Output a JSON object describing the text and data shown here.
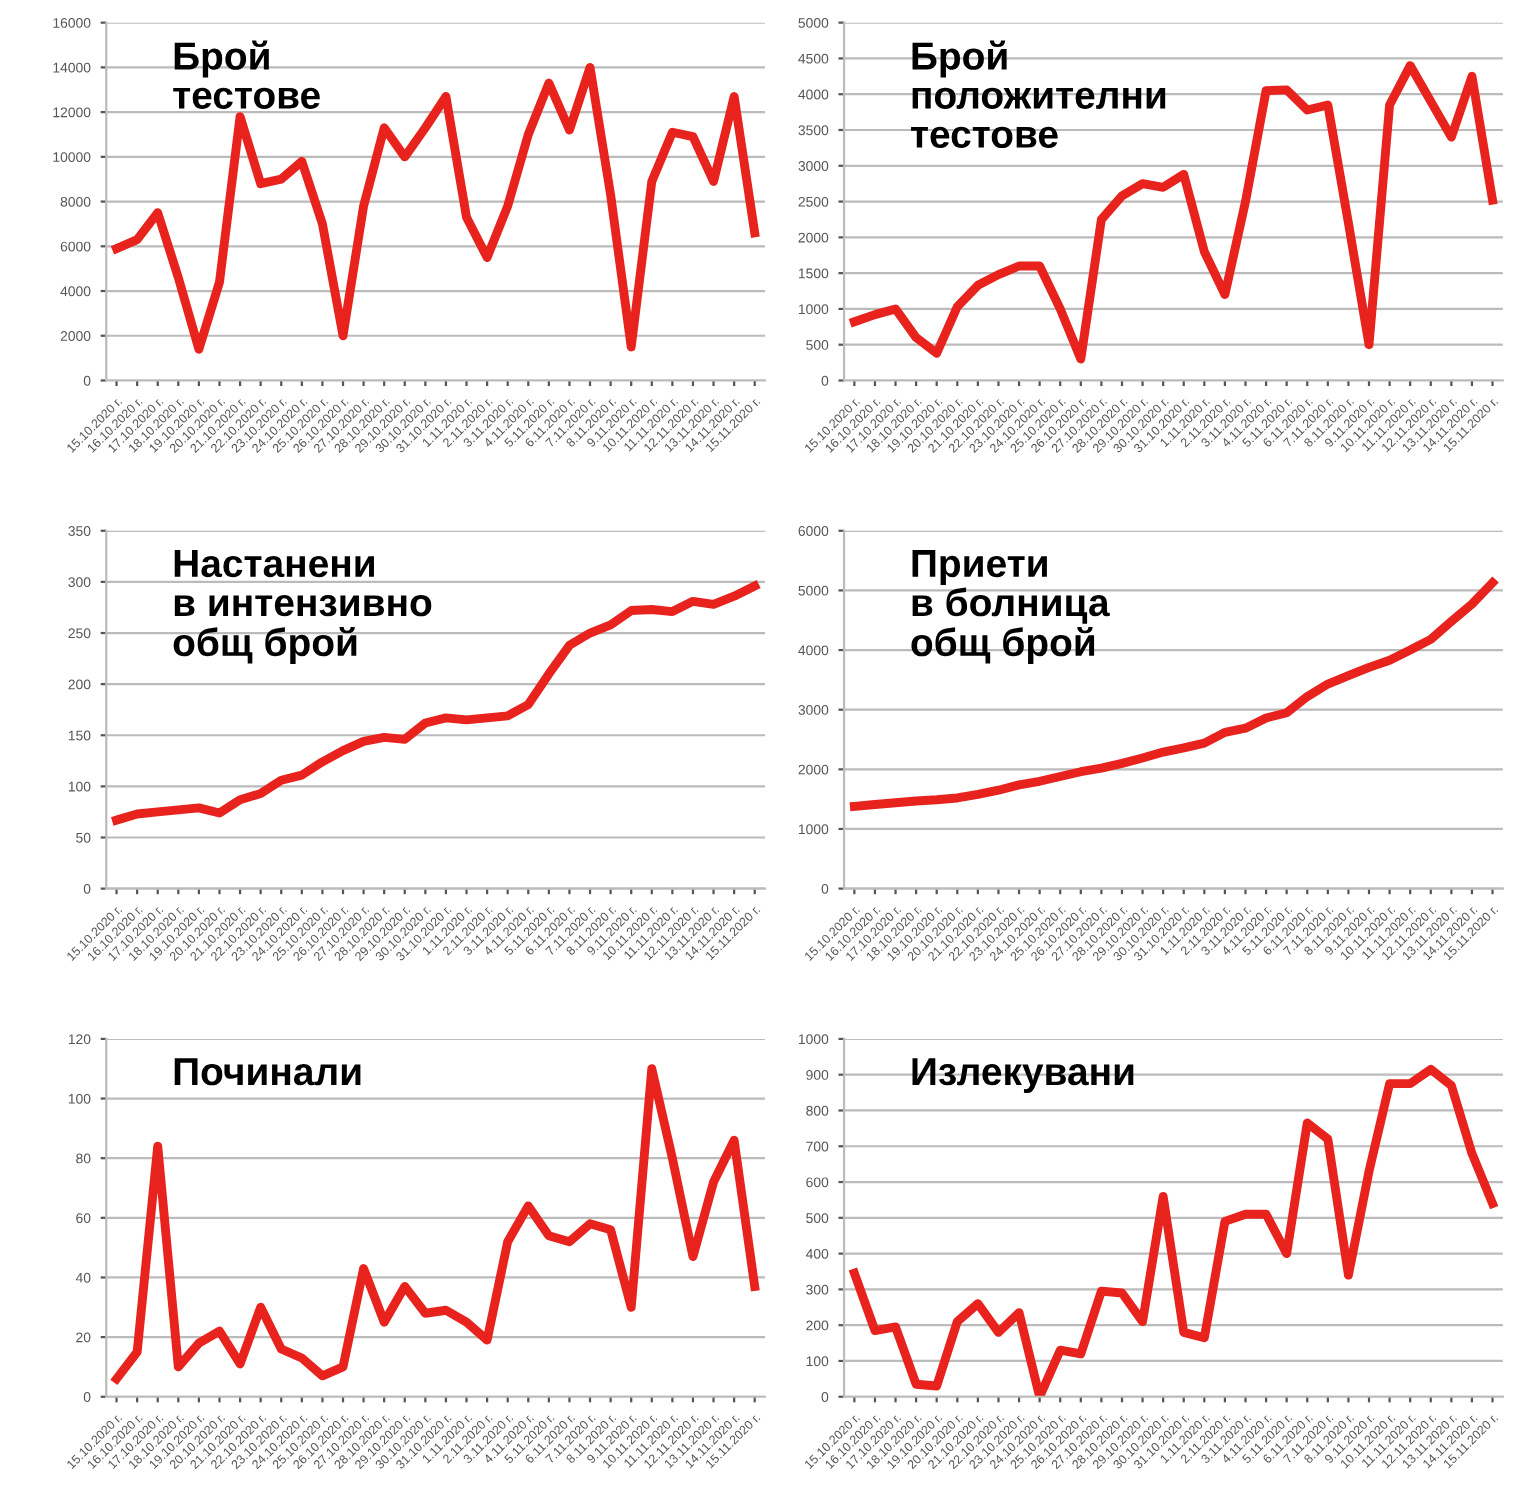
{
  "chart_data": [
    {
      "type": "line",
      "title": "Брой\nтестове",
      "categories": [
        "15.10.2020 г.",
        "16.10.2020 г.",
        "17.10.2020 г.",
        "18.10.2020 г.",
        "19.10.2020 г.",
        "20.10.2020 г.",
        "21.10.2020 г.",
        "22.10.2020 г.",
        "23.10.2020 г.",
        "24.10.2020 г.",
        "25.10.2020 г.",
        "26.10.2020 г.",
        "27.10.2020 г.",
        "28.10.2020 г.",
        "29.10.2020 г.",
        "30.10.2020 г.",
        "31.10.2020 г.",
        "1.11.2020 г.",
        "2.11.2020 г.",
        "3.11.2020 г.",
        "4.11.2020 г.",
        "5.11.2020 г.",
        "6.11.2020 г.",
        "7.11.2020 г.",
        "8.11.2020 г.",
        "9.11.2020 г.",
        "10.11.2020 г.",
        "11.11.2020 г.",
        "12.11.2020 г.",
        "13.11.2020 г.",
        "14.11.2020 г.",
        "15.11.2020 г."
      ],
      "series": [
        {
          "color": "#e8231e",
          "values": [
            5900,
            6300,
            7500,
            4600,
            1400,
            4400,
            11800,
            8800,
            9000,
            9800,
            7000,
            2000,
            7800,
            11300,
            10000,
            11300,
            12700,
            7300,
            5500,
            7800,
            11000,
            13300,
            11200,
            14000,
            8300,
            1500,
            8900,
            11100,
            10900,
            8900,
            12700,
            6600
          ]
        }
      ],
      "ylim": [
        0,
        16000
      ],
      "yticks": [
        0,
        2000,
        4000,
        6000,
        8000,
        10000,
        12000,
        14000,
        16000
      ],
      "grid": "y",
      "marker": "none",
      "line_style": "solid",
      "legend": false
    },
    {
      "type": "line",
      "title": "Брой\nположителни\nтестове",
      "categories": [
        "15.10.2020 г.",
        "16.10.2020 г.",
        "17.10.2020 г.",
        "18.10.2020 г.",
        "19.10.2020 г.",
        "20.10.2020 г.",
        "21.10.2020 г.",
        "22.10.2020 г.",
        "23.10.2020 г.",
        "24.10.2020 г.",
        "25.10.2020 г.",
        "26.10.2020 г.",
        "27.10.2020 г.",
        "28.10.2020 г.",
        "29.10.2020 г.",
        "30.10.2020 г.",
        "31.10.2020 г.",
        "1.11.2020 г.",
        "2.11.2020 г.",
        "3.11.2020 г.",
        "4.11.2020 г.",
        "5.11.2020 г.",
        "6.11.2020 г.",
        "7.11.2020 г.",
        "8.11.2020 г.",
        "9.11.2020 г.",
        "10.11.2020 г.",
        "11.11.2020 г.",
        "12.11.2020 г.",
        "13.11.2020 г.",
        "14.11.2020 г.",
        "15.11.2020 г."
      ],
      "series": [
        {
          "color": "#e8231e",
          "values": [
            820,
            920,
            1000,
            600,
            380,
            1030,
            1330,
            1480,
            1600,
            1600,
            1000,
            300,
            2250,
            2580,
            2750,
            2700,
            2880,
            1800,
            1200,
            2500,
            4050,
            4060,
            3780,
            3850,
            2200,
            500,
            3850,
            4400,
            3900,
            3400,
            4250,
            2520
          ]
        }
      ],
      "ylim": [
        0,
        5000
      ],
      "yticks": [
        0,
        500,
        1000,
        1500,
        2000,
        2500,
        3000,
        3500,
        4000,
        4500,
        5000
      ],
      "grid": "y",
      "marker": "none",
      "line_style": "solid",
      "legend": false
    },
    {
      "type": "line",
      "title": "Настанени\nв интензивно\nобщ брой",
      "categories": [
        "15.10.2020 г.",
        "16.10.2020 г.",
        "17.10.2020 г.",
        "18.10.2020 г.",
        "19.10.2020 г.",
        "20.10.2020 г.",
        "21.10.2020 г.",
        "22.10.2020 г.",
        "23.10.2020 г.",
        "24.10.2020 г.",
        "25.10.2020 г.",
        "26.10.2020 г.",
        "27.10.2020 г.",
        "28.10.2020 г.",
        "29.10.2020 г.",
        "30.10.2020 г.",
        "31.10.2020 г.",
        "1.11.2020 г.",
        "2.11.2020 г.",
        "3.11.2020 г.",
        "4.11.2020 г.",
        "5.11.2020 г.",
        "6.11.2020 г.",
        "7.11.2020 г.",
        "8.11.2020 г.",
        "9.11.2020 г.",
        "10.11.2020 г.",
        "11.11.2020 г.",
        "12.11.2020 г.",
        "13.11.2020 г.",
        "14.11.2020 г.",
        "15.11.2020 г."
      ],
      "series": [
        {
          "color": "#e8231e",
          "values": [
            67,
            73,
            75,
            77,
            79,
            74,
            87,
            93,
            106,
            111,
            124,
            135,
            144,
            148,
            146,
            162,
            167,
            165,
            167,
            169,
            180,
            210,
            238,
            250,
            258,
            272,
            273,
            271,
            281,
            278,
            286,
            296
          ]
        }
      ],
      "ylim": [
        0,
        350
      ],
      "yticks": [
        0,
        50,
        100,
        150,
        200,
        250,
        300,
        350
      ],
      "grid": "y",
      "marker": "none",
      "line_style": "solid",
      "legend": false
    },
    {
      "type": "line",
      "title": "Приети\nв болница\nобщ брой",
      "categories": [
        "15.10.2020 г.",
        "16.10.2020 г.",
        "17.10.2020 г.",
        "18.10.2020 г.",
        "19.10.2020 г.",
        "20.10.2020 г.",
        "21.10.2020 г.",
        "22.10.2020 г.",
        "23.10.2020 г.",
        "24.10.2020 г.",
        "25.10.2020 г.",
        "26.10.2020 г.",
        "27.10.2020 г.",
        "28.10.2020 г.",
        "29.10.2020 г.",
        "30.10.2020 г.",
        "31.10.2020 г.",
        "1.11.2020 г.",
        "2.11.2020 г.",
        "3.11.2020 г.",
        "4.11.2020 г.",
        "5.11.2020 г.",
        "6.11.2020 г.",
        "7.11.2020 г.",
        "8.11.2020 г.",
        "9.11.2020 г.",
        "10.11.2020 г.",
        "11.11.2020 г.",
        "12.11.2020 г.",
        "13.11.2020 г.",
        "14.11.2020 г.",
        "15.11.2020 г."
      ],
      "series": [
        {
          "color": "#e8231e",
          "values": [
            1380,
            1410,
            1440,
            1470,
            1490,
            1520,
            1580,
            1650,
            1740,
            1800,
            1880,
            1960,
            2020,
            2100,
            2190,
            2290,
            2360,
            2440,
            2620,
            2690,
            2860,
            2950,
            3220,
            3430,
            3570,
            3710,
            3830,
            4000,
            4180,
            4480,
            4770,
            5130
          ]
        }
      ],
      "ylim": [
        0,
        6000
      ],
      "yticks": [
        0,
        1000,
        2000,
        3000,
        4000,
        5000,
        6000
      ],
      "grid": "y",
      "marker": "none",
      "line_style": "solid",
      "legend": false
    },
    {
      "type": "line",
      "title": "Починали",
      "categories": [
        "15.10.2020 г.",
        "16.10.2020 г.",
        "17.10.2020 г.",
        "18.10.2020 г.",
        "19.10.2020 г.",
        "20.10.2020 г.",
        "21.10.2020 г.",
        "22.10.2020 г.",
        "23.10.2020 г.",
        "24.10.2020 г.",
        "25.10.2020 г.",
        "26.10.2020 г.",
        "27.10.2020 г.",
        "28.10.2020 г.",
        "29.10.2020 г.",
        "30.10.2020 г.",
        "31.10.2020 г.",
        "1.11.2020 г.",
        "2.11.2020 г.",
        "3.11.2020 г.",
        "4.11.2020 г.",
        "5.11.2020 г.",
        "6.11.2020 г.",
        "7.11.2020 г.",
        "8.11.2020 г.",
        "9.11.2020 г.",
        "10.11.2020 г.",
        "11.11.2020 г.",
        "12.11.2020 г.",
        "13.11.2020 г.",
        "14.11.2020 г.",
        "15.11.2020 г."
      ],
      "series": [
        {
          "color": "#e8231e",
          "values": [
            6,
            15,
            84,
            10,
            18,
            22,
            11,
            30,
            16,
            13,
            7,
            10,
            43,
            25,
            37,
            28,
            29,
            25,
            19,
            52,
            64,
            54,
            52,
            58,
            56,
            30,
            110,
            80,
            47,
            72,
            86,
            37
          ]
        }
      ],
      "ylim": [
        0,
        120
      ],
      "yticks": [
        0,
        20,
        40,
        60,
        80,
        100,
        120
      ],
      "grid": "y",
      "marker": "none",
      "line_style": "solid",
      "legend": false
    },
    {
      "type": "line",
      "title": "Излекувани",
      "categories": [
        "15.10.2020 г.",
        "16.10.2020 г.",
        "17.10.2020 г.",
        "18.10.2020 г.",
        "19.10.2020 г.",
        "20.10.2020 г.",
        "21.10.2020 г.",
        "22.10.2020 г.",
        "23.10.2020 г.",
        "24.10.2020 г.",
        "25.10.2020 г.",
        "26.10.2020 г.",
        "27.10.2020 г.",
        "28.10.2020 г.",
        "29.10.2020 г.",
        "30.10.2020 г.",
        "31.10.2020 г.",
        "1.11.2020 г.",
        "2.11.2020 г.",
        "3.11.2020 г.",
        "4.11.2020 г.",
        "5.11.2020 г.",
        "6.11.2020 г.",
        "7.11.2020 г.",
        "8.11.2020 г.",
        "9.11.2020 г.",
        "10.11.2020 г.",
        "11.11.2020 г.",
        "12.11.2020 г.",
        "13.11.2020 г.",
        "14.11.2020 г.",
        "15.11.2020 г."
      ],
      "series": [
        {
          "color": "#e8231e",
          "values": [
            345,
            185,
            195,
            35,
            30,
            210,
            260,
            180,
            235,
            0,
            130,
            120,
            295,
            290,
            210,
            560,
            180,
            165,
            490,
            510,
            510,
            400,
            765,
            720,
            340,
            630,
            875,
            875,
            915,
            870,
            680,
            540
          ]
        }
      ],
      "ylim": [
        0,
        1000
      ],
      "yticks": [
        0,
        100,
        200,
        300,
        400,
        500,
        600,
        700,
        800,
        900,
        1000
      ],
      "grid": "y",
      "marker": "none",
      "line_style": "solid",
      "legend": false
    }
  ]
}
